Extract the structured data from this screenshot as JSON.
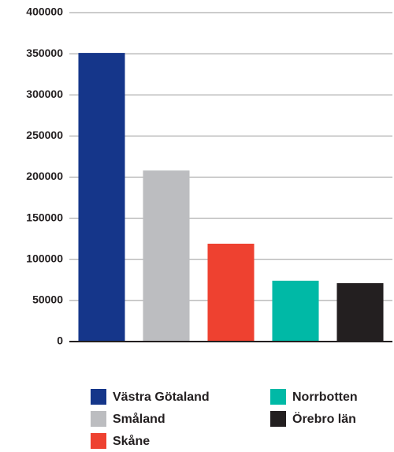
{
  "chart_data": {
    "type": "bar",
    "categories": [
      "Västra Götaland",
      "Småland",
      "Skåne",
      "Norrbotten",
      "Örebro län"
    ],
    "values": [
      351000,
      208000,
      119000,
      74000,
      71000
    ],
    "colors": [
      "#15368a",
      "#bcbdc0",
      "#ee4130",
      "#00b9a6",
      "#231f20"
    ],
    "ylim": [
      0,
      400000
    ],
    "yticks": [
      0,
      50000,
      100000,
      150000,
      200000,
      250000,
      300000,
      350000,
      400000
    ],
    "grid": true
  }
}
